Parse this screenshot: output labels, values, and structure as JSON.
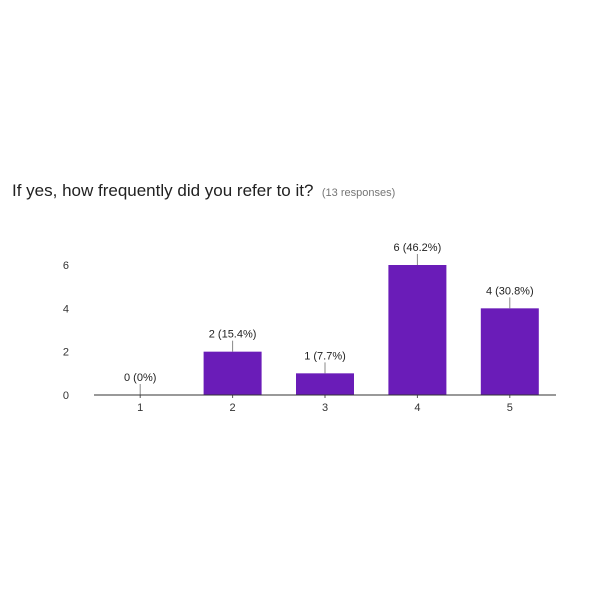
{
  "question": "If yes, how frequently did you refer to it?",
  "responses": "(13 responses)",
  "chart_data": {
    "type": "bar",
    "categories": [
      "1",
      "2",
      "3",
      "4",
      "5"
    ],
    "values": [
      0,
      2,
      1,
      6,
      4
    ],
    "data_labels": [
      "0 (0%)",
      "2 (15.4%)",
      "1 (7.7%)",
      "6 (46.2%)",
      "4 (30.8%)"
    ],
    "yticks": [
      0,
      2,
      4,
      6
    ],
    "ylim": [
      0,
      6
    ],
    "bar_color": "#6a1cb8",
    "xlabel": "",
    "ylabel": "",
    "grid": false,
    "legend": "none"
  }
}
